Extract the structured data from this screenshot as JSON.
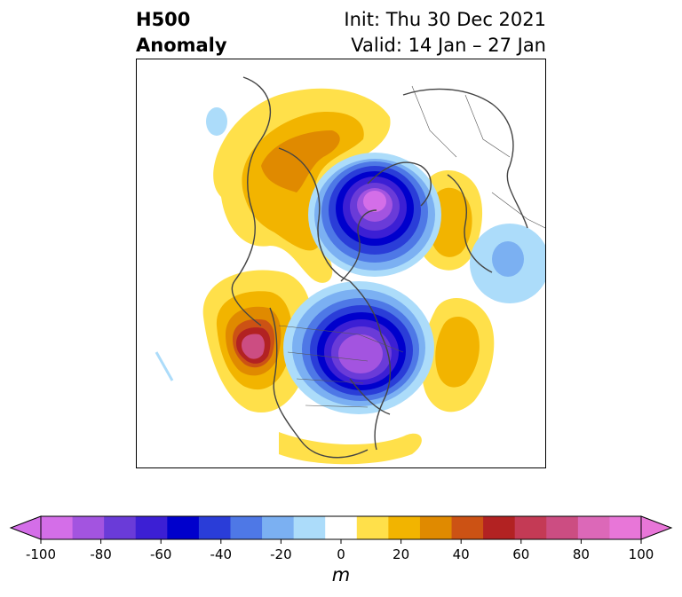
{
  "title": {
    "left_line1": "H500",
    "left_line2": "Anomaly",
    "right_line1": "Init: Thu 30 Dec 2021",
    "right_line2": "Valid: 14 Jan – 27 Jan"
  },
  "colorbar": {
    "unit": "m",
    "ticks": [
      "-100",
      "-80",
      "-60",
      "-40",
      "-20",
      "0",
      "20",
      "40",
      "60",
      "80",
      "100"
    ],
    "levels": [
      -100,
      -90,
      -80,
      -70,
      -60,
      -50,
      -40,
      -30,
      -20,
      -10,
      10,
      20,
      30,
      40,
      50,
      60,
      70,
      80,
      90,
      100
    ],
    "extend": "both",
    "colors": [
      "#d46ee8",
      "#a354e0",
      "#6a3bd8",
      "#3c1fd4",
      "#0000cc",
      "#2a3dd8",
      "#4e78e6",
      "#7bb0f2",
      "#acdcfa",
      "#ffffff",
      "#ffe04a",
      "#f2b400",
      "#e08a00",
      "#cc5214",
      "#b22222",
      "#c43a55",
      "#cc4d82",
      "#dc68b8",
      "#e876d8"
    ]
  },
  "map": {
    "projection": "north-polar-stereographic",
    "features": [
      "Negative anomaly centered over the Arctic/Greenland region",
      "Negative anomaly centered over the Great Lakes / eastern Canada",
      "Positive anomaly ridge over the Northeast Pacific / Gulf of Alaska",
      "Positive anomalies over Siberia, Scandinavia/Europe and the western Atlantic"
    ]
  }
}
